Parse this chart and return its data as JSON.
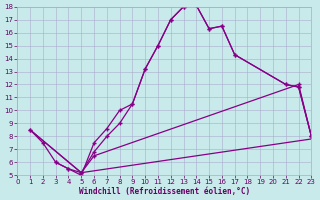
{
  "xlabel": "Windchill (Refroidissement éolien,°C)",
  "xlim": [
    0,
    23
  ],
  "ylim": [
    5,
    18
  ],
  "xticks": [
    0,
    1,
    2,
    3,
    4,
    5,
    6,
    7,
    8,
    9,
    10,
    11,
    12,
    13,
    14,
    15,
    16,
    17,
    18,
    19,
    20,
    21,
    22,
    23
  ],
  "yticks": [
    5,
    6,
    7,
    8,
    9,
    10,
    11,
    12,
    13,
    14,
    15,
    16,
    17,
    18
  ],
  "bg_color": "#c8eaea",
  "line_color": "#880088",
  "grid_color": "#aaaacc",
  "font_color": "#660066",
  "line1_x": [
    1,
    2,
    3,
    4,
    5,
    6,
    7,
    8,
    9,
    10,
    11,
    12,
    13,
    14,
    15,
    16,
    17,
    21,
    22,
    23
  ],
  "line1_y": [
    8.5,
    7.5,
    6.0,
    5.5,
    5.0,
    7.5,
    8.6,
    10.0,
    10.5,
    13.2,
    15.0,
    17.0,
    18.0,
    18.1,
    16.3,
    16.5,
    14.3,
    12.0,
    11.8,
    8.0
  ],
  "line2_x": [
    3,
    4,
    5,
    6,
    7,
    8,
    9,
    10,
    11,
    12,
    13,
    14,
    15,
    16,
    17,
    21,
    22,
    23
  ],
  "line2_y": [
    6.0,
    5.5,
    5.2,
    6.8,
    8.0,
    9.0,
    10.5,
    13.2,
    15.0,
    17.0,
    18.0,
    18.1,
    16.3,
    16.5,
    14.3,
    12.0,
    11.8,
    8.0
  ],
  "line3_x": [
    1,
    5,
    6,
    22,
    23
  ],
  "line3_y": [
    8.5,
    5.2,
    6.5,
    12.0,
    8.0
  ],
  "line4_x": [
    1,
    5,
    23
  ],
  "line4_y": [
    8.5,
    5.2,
    7.8
  ]
}
